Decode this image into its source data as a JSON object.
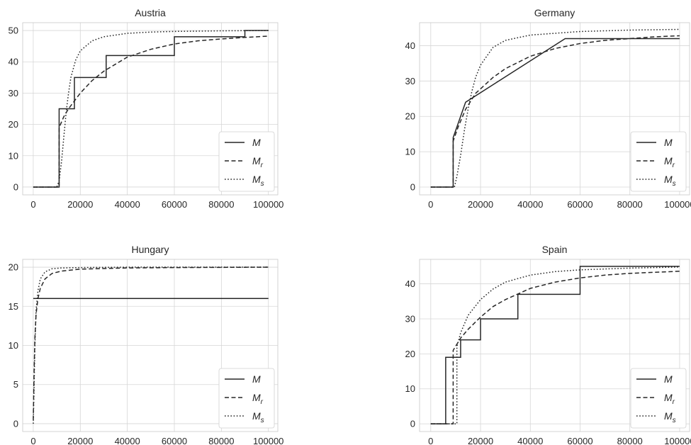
{
  "chart_data": [
    {
      "type": "line",
      "title": "Austria",
      "xlabel": "",
      "ylabel": "",
      "xlim": [
        -4500,
        104000
      ],
      "ylim": [
        -2.5,
        52.5
      ],
      "xticks": [
        0,
        20000,
        40000,
        60000,
        80000,
        100000
      ],
      "xtick_labels": [
        "0",
        "20000",
        "40000",
        "60000",
        "80000",
        "100000"
      ],
      "yticks": [
        0,
        10,
        20,
        30,
        40,
        50
      ],
      "ytick_labels": [
        "0",
        "10",
        "20",
        "30",
        "40",
        "50"
      ],
      "grid": true,
      "legend_position": "lower right",
      "series": [
        {
          "name": "M",
          "style": "solid",
          "x": [
            0,
            11000,
            11000,
            17500,
            17500,
            31000,
            31000,
            60000,
            60000,
            90000,
            90000,
            100000
          ],
          "y": [
            0,
            0,
            25,
            25,
            35,
            35,
            42,
            42,
            48,
            48,
            50,
            50
          ]
        },
        {
          "name": "M_r",
          "style": "dashed",
          "x": [
            0,
            11000,
            11000,
            13000,
            15000,
            20000,
            25000,
            30000,
            40000,
            50000,
            60000,
            70000,
            80000,
            90000,
            100000
          ],
          "y": [
            0,
            0,
            19,
            22.5,
            25,
            30,
            34,
            37,
            41.5,
            44,
            45.7,
            46.7,
            47.3,
            47.8,
            48.2
          ]
        },
        {
          "name": "M_s",
          "style": "dotted",
          "x": [
            0,
            10000,
            11000,
            12000,
            13000,
            14000,
            15000,
            16000,
            18000,
            20000,
            25000,
            30000,
            40000,
            50000,
            60000,
            80000,
            100000
          ],
          "y": [
            0,
            0,
            2,
            8,
            16,
            24,
            30,
            35,
            40.5,
            43.5,
            46.7,
            48,
            49.1,
            49.5,
            49.7,
            49.9,
            50
          ]
        }
      ]
    },
    {
      "type": "line",
      "title": "Germany",
      "xlabel": "",
      "ylabel": "",
      "xlim": [
        -4500,
        104000
      ],
      "ylim": [
        -2.2,
        46.5
      ],
      "xticks": [
        0,
        20000,
        40000,
        60000,
        80000,
        100000
      ],
      "xtick_labels": [
        "0",
        "20000",
        "40000",
        "60000",
        "80000",
        "100000"
      ],
      "yticks": [
        0,
        10,
        20,
        30,
        40
      ],
      "ytick_labels": [
        "0",
        "10",
        "20",
        "30",
        "40"
      ],
      "grid": true,
      "legend_position": "lower right",
      "series": [
        {
          "name": "M",
          "style": "solid",
          "x": [
            0,
            9000,
            9000,
            14000,
            54000,
            100000
          ],
          "y": [
            0,
            0,
            14,
            24,
            42,
            42
          ]
        },
        {
          "name": "M_r",
          "style": "dashed",
          "x": [
            0,
            9000,
            9000,
            11000,
            14000,
            18000,
            25000,
            30000,
            40000,
            50000,
            60000,
            70000,
            80000,
            90000,
            100000
          ],
          "y": [
            0,
            0,
            13,
            17,
            22,
            26.5,
            31,
            33.5,
            37,
            39.2,
            40.6,
            41.5,
            42,
            42.5,
            42.8
          ]
        },
        {
          "name": "M_s",
          "style": "dotted",
          "x": [
            0,
            9500,
            10500,
            12000,
            13500,
            15000,
            16500,
            18000,
            20000,
            25000,
            30000,
            40000,
            60000,
            80000,
            100000
          ],
          "y": [
            0,
            0,
            3,
            9,
            16,
            22,
            27,
            31,
            34.5,
            39.5,
            41.5,
            43,
            44,
            44.4,
            44.6
          ]
        }
      ]
    },
    {
      "type": "line",
      "title": "Hungary",
      "xlabel": "",
      "ylabel": "",
      "xlim": [
        -4500,
        104000
      ],
      "ylim": [
        -1,
        21
      ],
      "xticks": [
        0,
        20000,
        40000,
        60000,
        80000,
        100000
      ],
      "xtick_labels": [
        "0",
        "20000",
        "40000",
        "60000",
        "80000",
        "100000"
      ],
      "yticks": [
        0,
        5,
        10,
        15,
        20
      ],
      "ytick_labels": [
        "0",
        "5",
        "10",
        "15",
        "20"
      ],
      "grid": true,
      "legend_position": "lower right",
      "series": [
        {
          "name": "M",
          "style": "solid",
          "x": [
            0,
            100000
          ],
          "y": [
            16,
            16
          ]
        },
        {
          "name": "M_r",
          "style": "dashed",
          "x": [
            0,
            300,
            700,
            1200,
            2000,
            3000,
            5000,
            8000,
            12000,
            20000,
            40000,
            60000,
            100000
          ],
          "y": [
            0.5,
            6,
            11,
            14,
            16,
            17.3,
            18.5,
            19.2,
            19.5,
            19.75,
            19.9,
            19.95,
            20
          ]
        },
        {
          "name": "M_s",
          "style": "dotted",
          "x": [
            0,
            300,
            700,
            1200,
            2000,
            3000,
            5000,
            8000,
            12000,
            20000,
            40000,
            100000
          ],
          "y": [
            0,
            4,
            10,
            14.5,
            17,
            18.5,
            19.4,
            19.8,
            19.9,
            19.95,
            20,
            20
          ]
        }
      ]
    },
    {
      "type": "line",
      "title": "Spain",
      "xlabel": "",
      "ylabel": "",
      "xlim": [
        -4500,
        104000
      ],
      "ylim": [
        -2.2,
        47
      ],
      "xticks": [
        0,
        20000,
        40000,
        60000,
        80000,
        100000
      ],
      "xtick_labels": [
        "0",
        "20000",
        "40000",
        "60000",
        "80000",
        "100000"
      ],
      "yticks": [
        0,
        10,
        20,
        30,
        40
      ],
      "ytick_labels": [
        "0",
        "10",
        "20",
        "30",
        "40"
      ],
      "grid": true,
      "legend_position": "lower right",
      "series": [
        {
          "name": "M",
          "style": "solid",
          "x": [
            0,
            6000,
            6000,
            12000,
            12000,
            20000,
            20000,
            35000,
            35000,
            60000,
            60000,
            100000
          ],
          "y": [
            0,
            0,
            19,
            19,
            24,
            24,
            30,
            30,
            37,
            37,
            45,
            45
          ]
        },
        {
          "name": "M_r",
          "style": "dashed",
          "x": [
            0,
            9000,
            9000,
            12000,
            15000,
            20000,
            25000,
            30000,
            40000,
            50000,
            60000,
            70000,
            80000,
            90000,
            100000
          ],
          "y": [
            0,
            0,
            21,
            24.5,
            27,
            30.5,
            33.5,
            35.5,
            38.7,
            40.5,
            41.7,
            42.5,
            43,
            43.3,
            43.6
          ]
        },
        {
          "name": "M_s",
          "style": "dotted",
          "x": [
            0,
            10500,
            10500,
            12000,
            15000,
            20000,
            25000,
            30000,
            40000,
            50000,
            60000,
            80000,
            100000
          ],
          "y": [
            0,
            0,
            22,
            26,
            31,
            35.5,
            38.5,
            40.5,
            42.5,
            43.5,
            44,
            44.5,
            44.8
          ]
        }
      ]
    }
  ]
}
